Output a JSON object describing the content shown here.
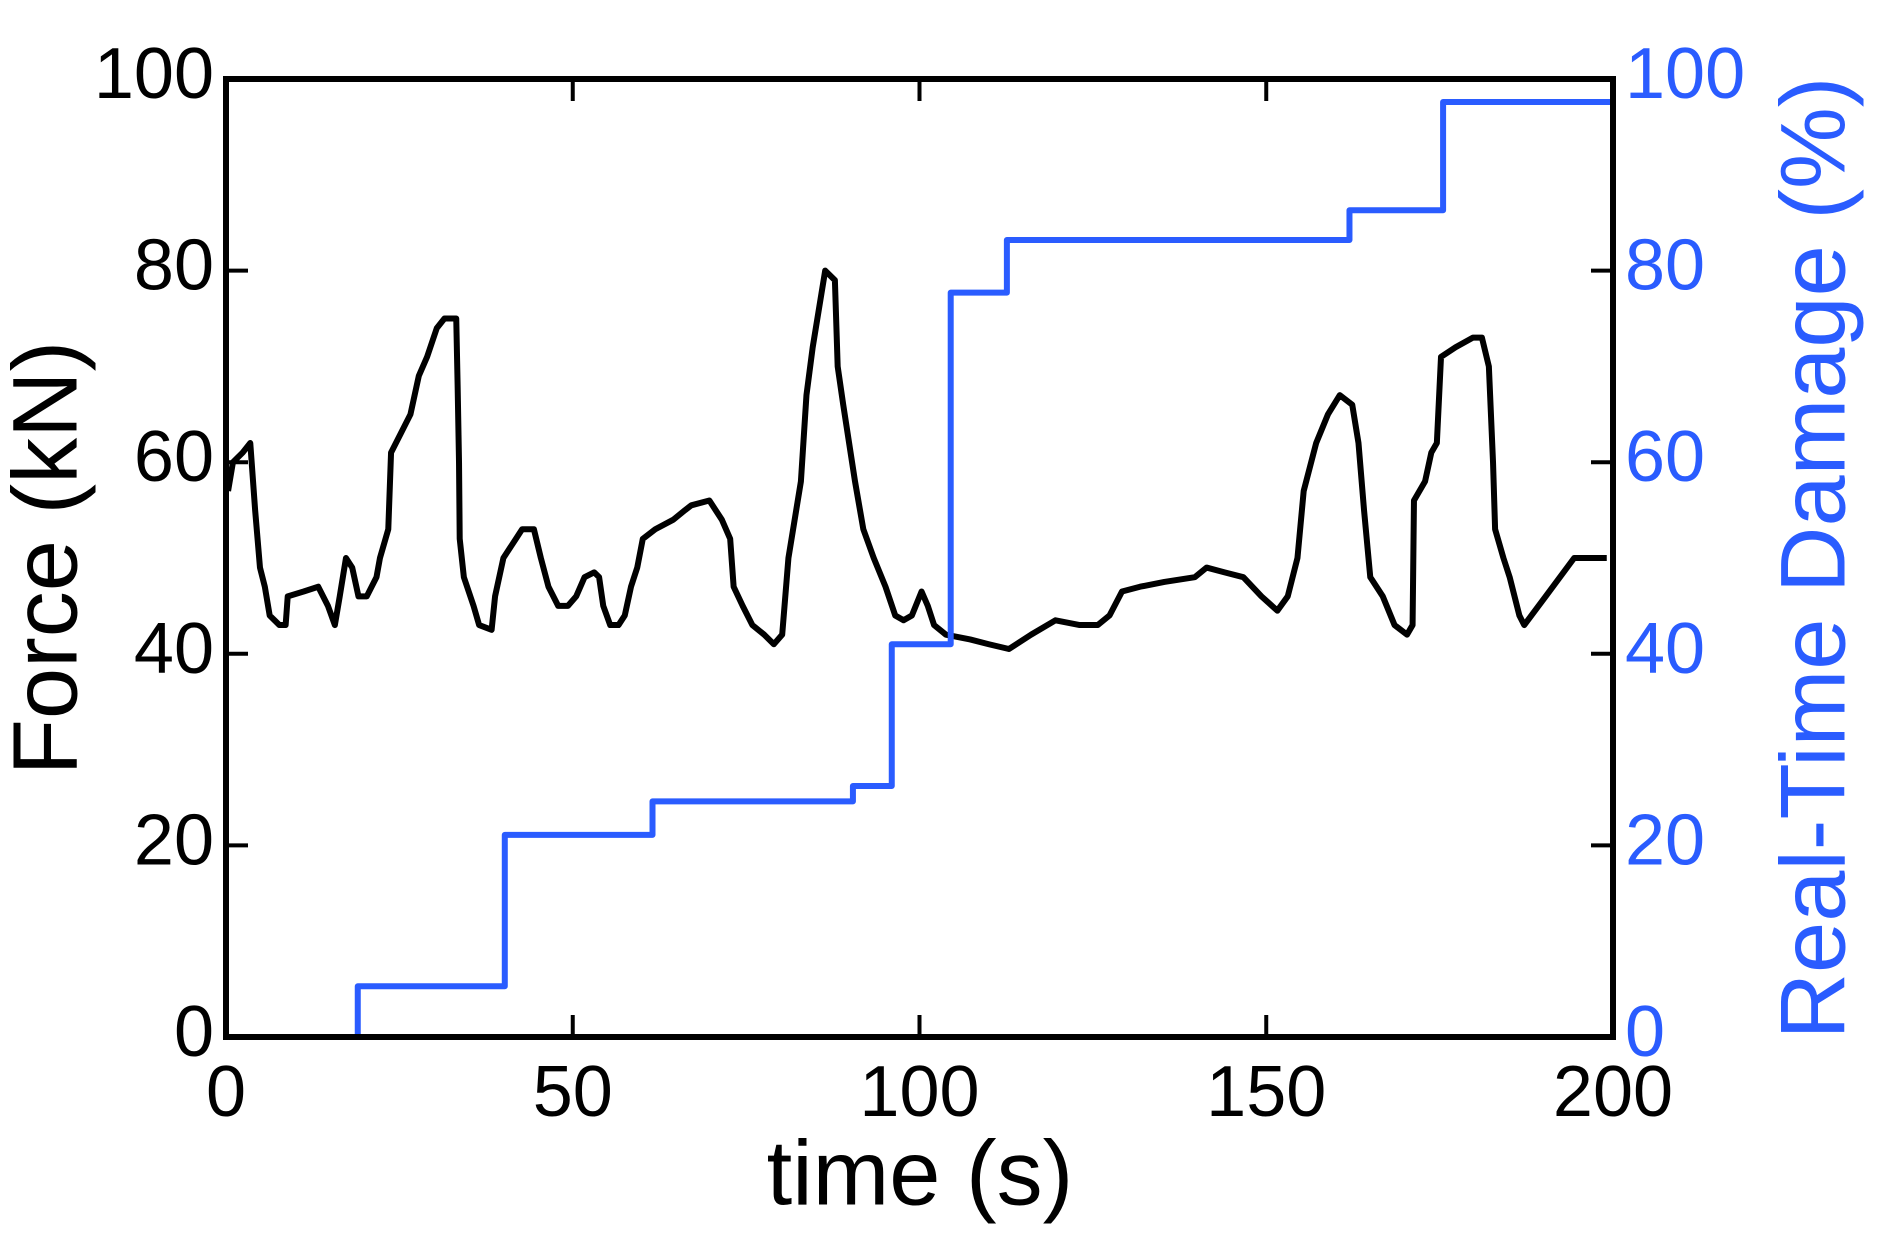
{
  "chart_data": {
    "type": "line",
    "xlabel": "time (s)",
    "ylabel": "Force (kN)",
    "y2label": "Real-Time Damage (%)",
    "xlim": [
      0,
      200
    ],
    "xticks": [
      0,
      50,
      100,
      150,
      200
    ],
    "ylim": [
      0,
      100
    ],
    "yticks": [
      0,
      20,
      40,
      60,
      80,
      100
    ],
    "y2lim": [
      0,
      100
    ],
    "y2ticks": [
      0,
      20,
      40,
      60,
      80,
      100
    ],
    "y2color": "#2a5cff",
    "series": [
      {
        "color": "#000000",
        "drawstyle": "default",
        "x": [
          0.3,
          1.0,
          2.4,
          3.5,
          4.2,
          4.9,
          5.6,
          6.3,
          7.7,
          8.6,
          8.9,
          11.2,
          13.3,
          14.7,
          15.7,
          16.4,
          17.3,
          18.2,
          19.1,
          20.3,
          21.7,
          22.2,
          23.4,
          23.8,
          25.2,
          26.6,
          27.8,
          29.0,
          30.4,
          31.5,
          33.2,
          33.4,
          33.6,
          33.7,
          34.3,
          35.7,
          36.5,
          38.3,
          38.8,
          40.0,
          41.8,
          42.7,
          44.4,
          45.4,
          46.5,
          47.9,
          49.3,
          50.5,
          51.7,
          53.1,
          53.8,
          54.4,
          55.4,
          56.6,
          57.5,
          58.4,
          59.3,
          60.1,
          61.9,
          64.5,
          66.2,
          67.1,
          69.7,
          71.5,
          72.7,
          73.2,
          74.5,
          75.9,
          77.6,
          79.0,
          80.2,
          81.1,
          82.9,
          83.7,
          84.6,
          85.5,
          86.4,
          87.8,
          88.2,
          89.0,
          90.7,
          91.9,
          93.4,
          95.1,
          96.5,
          97.7,
          98.9,
          100.3,
          101.2,
          102.1,
          103.8,
          107.3,
          110.0,
          112.9,
          116.1,
          119.6,
          123.1,
          125.7,
          127.4,
          129.2,
          131.8,
          135.3,
          139.7,
          141.4,
          144.0,
          146.7,
          149.3,
          151.6,
          153.1,
          154.5,
          155.4,
          157.2,
          158.9,
          160.6,
          162.4,
          163.3,
          164.1,
          165.0,
          166.8,
          168.5,
          170.3,
          171.1,
          171.3,
          172.9,
          173.8,
          174.6,
          175.2,
          177.3,
          179.8,
          181.1,
          182.1,
          182.7,
          183.0,
          184.2,
          185.1,
          186.5,
          187.2,
          190.3,
          194.4,
          196.5,
          199.1
        ],
        "values": [
          57,
          60,
          61,
          62,
          55,
          49,
          47,
          44,
          43,
          43,
          46,
          46.5,
          47,
          45,
          43,
          46,
          50,
          49,
          46,
          46,
          48,
          50,
          53,
          61,
          63,
          65,
          69,
          71,
          74,
          75,
          75,
          68,
          60,
          52,
          48,
          45,
          43,
          42.5,
          46,
          50,
          52,
          53,
          53,
          50,
          47,
          45,
          45,
          46,
          48,
          48.5,
          48,
          45,
          43,
          43,
          44,
          47,
          49,
          52,
          53,
          54,
          55,
          55.5,
          56,
          54,
          52,
          47,
          45,
          43,
          42,
          41,
          42,
          50,
          58,
          67,
          72,
          76,
          80,
          79,
          70,
          66,
          58,
          53,
          50,
          47,
          44,
          43.5,
          44,
          46.5,
          45,
          43,
          42,
          41.5,
          41,
          40.5,
          42,
          43.5,
          43,
          43,
          44,
          46.5,
          47,
          47.5,
          48,
          49,
          48.5,
          48,
          46,
          44.5,
          46,
          50,
          57,
          62,
          65,
          67,
          66,
          62,
          55,
          48,
          46,
          43,
          42,
          43,
          56,
          58,
          61,
          62,
          71,
          72,
          73,
          73,
          70,
          60,
          53,
          50,
          48,
          44,
          43,
          46,
          50,
          50,
          50
        ]
      },
      {
        "color": "#2a5cff",
        "axis": "y2",
        "drawstyle": "steps-post",
        "x": [
          0,
          19,
          40.2,
          61.5,
          90.4,
          96,
          104.5,
          112.6,
          162,
          175.5,
          200
        ],
        "values": [
          0,
          5.3,
          21.1,
          24.6,
          26.2,
          41,
          77.7,
          83.2,
          86.3,
          97.6,
          97.6
        ]
      }
    ]
  }
}
